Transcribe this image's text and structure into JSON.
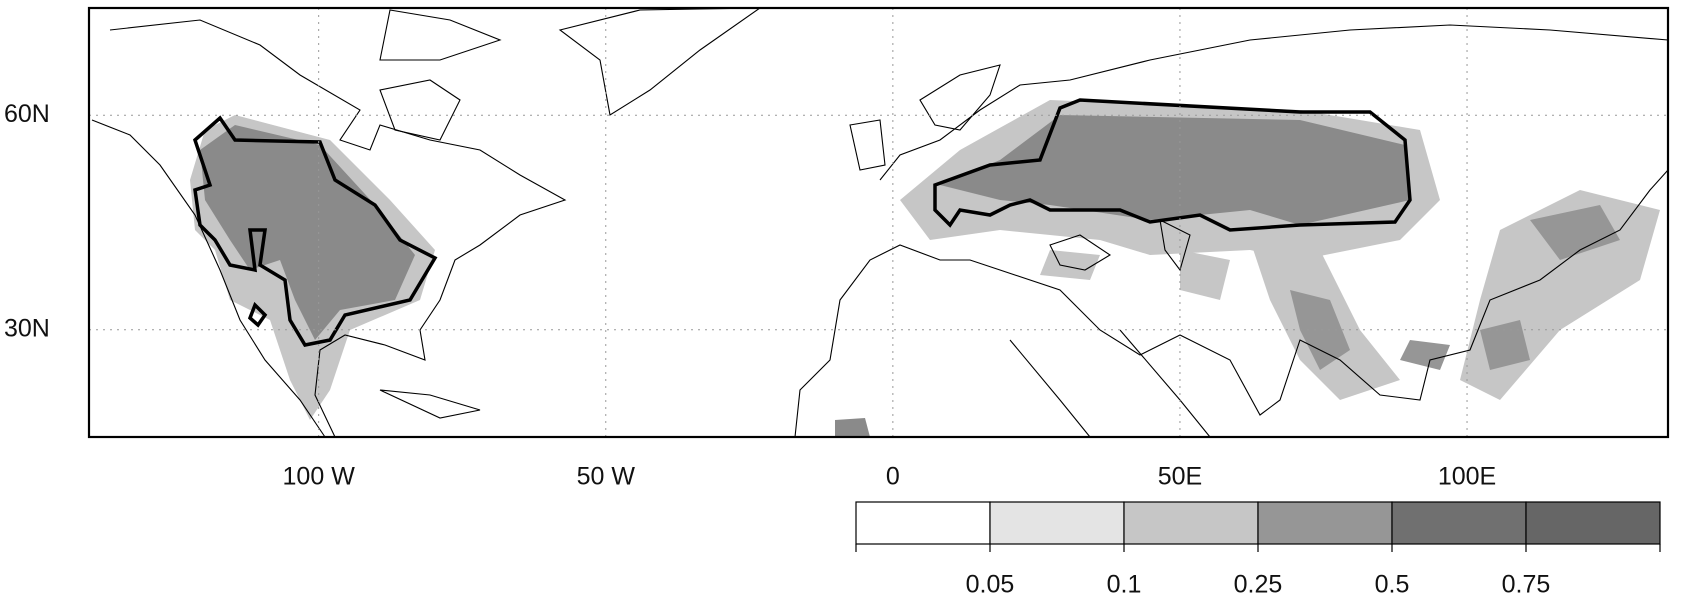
{
  "map": {
    "lonlim": [
      -140,
      135
    ],
    "latlim": [
      15,
      75
    ],
    "lon_ticks": [
      {
        "value": -100,
        "label": "100 W"
      },
      {
        "value": -50,
        "label": "50 W"
      },
      0,
      {
        "value": 50,
        "label": "50E"
      },
      {
        "value": 100,
        "label": "100E"
      }
    ],
    "lat_ticks": [
      {
        "value": 60,
        "label": "60N"
      },
      {
        "value": 30,
        "label": "30N"
      }
    ],
    "grid": true
  },
  "colorbar": {
    "levels": [
      0.05,
      0.1,
      0.25,
      0.5,
      0.75
    ],
    "colors": [
      "#ffffff",
      "#e4e4e4",
      "#c6c6c6",
      "#969696",
      "#707070",
      "#666666"
    ]
  }
}
